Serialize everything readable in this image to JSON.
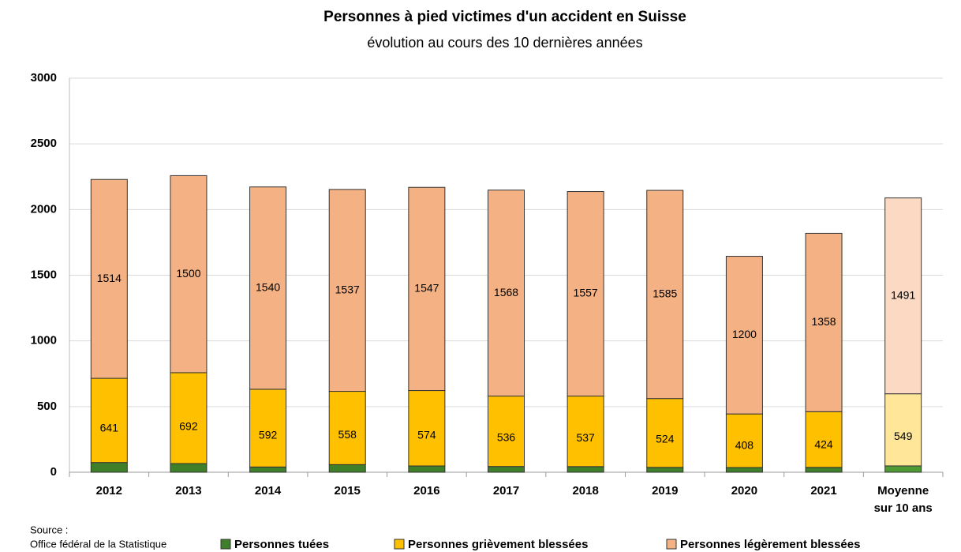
{
  "chart_data": {
    "type": "stacked_bar",
    "title": "Personnes à pied victimes d'un accident en Suisse",
    "subtitle": "évolution au cours des 10 dernières années",
    "categories": [
      "2012",
      "2013",
      "2014",
      "2015",
      "2016",
      "2017",
      "2018",
      "2019",
      "2020",
      "2021",
      "Moyenne sur 10 ans"
    ],
    "series": [
      {
        "name": "Personnes tuées",
        "color": "#3f7f2a",
        "colors": [
          "#3f7f2a",
          "#3f7f2a",
          "#3f7f2a",
          "#3f7f2a",
          "#3f7f2a",
          "#3f7f2a",
          "#3f7f2a",
          "#3f7f2a",
          "#3f7f2a",
          "#3f7f2a",
          "#4f9a35"
        ],
        "values": [
          74,
          66,
          40,
          58,
          48,
          44,
          43,
          37,
          36,
          37,
          48.3
        ],
        "value_labels": [
          "74",
          "66",
          "40",
          "58",
          "48",
          "44",
          "43",
          "37",
          "36",
          "37",
          "48,3"
        ]
      },
      {
        "name": "Personnes grièvement blessées",
        "color": "#ffc000",
        "colors": [
          "#ffc000",
          "#ffc000",
          "#ffc000",
          "#ffc000",
          "#ffc000",
          "#ffc000",
          "#ffc000",
          "#ffc000",
          "#ffc000",
          "#ffc000",
          "#ffe699"
        ],
        "values": [
          641,
          692,
          592,
          558,
          574,
          536,
          537,
          524,
          408,
          424,
          549
        ]
      },
      {
        "name": "Personnes légèrement blessées",
        "color": "#f4b183",
        "colors": [
          "#f4b183",
          "#f4b183",
          "#f4b183",
          "#f4b183",
          "#f4b183",
          "#f4b183",
          "#f4b183",
          "#f4b183",
          "#f4b183",
          "#f4b183",
          "#fbd9c3"
        ],
        "values": [
          1514,
          1500,
          1540,
          1537,
          1547,
          1568,
          1557,
          1585,
          1200,
          1358,
          1491
        ]
      }
    ],
    "ylim": [
      0,
      3000
    ],
    "yticks": [
      0,
      500,
      1000,
      1500,
      2000,
      2500,
      3000
    ],
    "grid": true,
    "source_label": "Source :",
    "source": "Office fédéral de la Statistique"
  }
}
